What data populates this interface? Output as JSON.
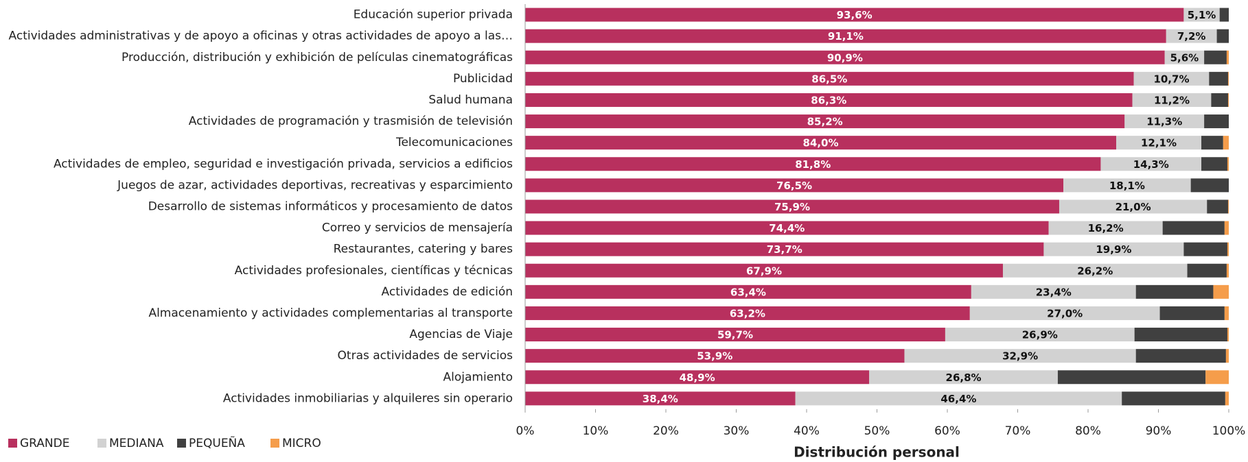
{
  "chart_data": {
    "type": "stacked-bar-horizontal",
    "x_label": "Distribución personal",
    "categories": [
      "Educación superior privada",
      "Actividades administrativas y de apoyo a oficinas y otras actividades de apoyo a las…",
      "Producción, distribución y exhibición de películas cinematográficas",
      "Publicidad",
      "Salud humana",
      "Actividades de programación y trasmisión de televisión",
      "Telecomunicaciones",
      "Actividades de empleo, seguridad e investigación privada, servicios a edificios",
      "Juegos de azar, actividades deportivas, recreativas y esparcimiento",
      "Desarrollo de sistemas informáticos y procesamiento de datos",
      "Correo y servicios de mensajería",
      "Restaurantes, catering y bares",
      "Actividades profesionales, científicas y técnicas",
      "Actividades de edición",
      "Almacenamiento y actividades complementarias al transporte",
      "Agencias de Viaje",
      "Otras actividades de servicios",
      "Alojamiento",
      "Actividades inmobiliarias y alquileres sin operario"
    ],
    "series": [
      {
        "name": "GRANDE",
        "color": "#b8305e",
        "label_color": "#ffffff",
        "values": [
          93.6,
          91.1,
          90.9,
          86.5,
          86.3,
          85.2,
          84.0,
          81.8,
          76.5,
          75.9,
          74.4,
          73.7,
          67.9,
          63.4,
          63.2,
          59.7,
          53.9,
          48.9,
          38.4
        ],
        "value_labels": [
          "93,6%",
          "91,1%",
          "90,9%",
          "86,5%",
          "86,3%",
          "85,2%",
          "84,0%",
          "81,8%",
          "76,5%",
          "75,9%",
          "74,4%",
          "73,7%",
          "67,9%",
          "63,4%",
          "63,2%",
          "59,7%",
          "53,9%",
          "48,9%",
          "38,4%"
        ]
      },
      {
        "name": "MEDIANA",
        "color": "#d2d2d2",
        "label_color": "#111111",
        "values": [
          5.1,
          7.2,
          5.6,
          10.7,
          11.2,
          11.3,
          12.1,
          14.3,
          18.1,
          21.0,
          16.2,
          19.9,
          26.2,
          23.4,
          27.0,
          26.9,
          32.9,
          26.8,
          46.4
        ],
        "value_labels": [
          "5,1%",
          "7,2%",
          "5,6%",
          "10,7%",
          "11,2%",
          "11,3%",
          "12,1%",
          "14,3%",
          "18,1%",
          "21,0%",
          "16,2%",
          "19,9%",
          "26,2%",
          "23,4%",
          "27,0%",
          "26,9%",
          "32,9%",
          "26,8%",
          "46,4%"
        ]
      },
      {
        "name": "PEQUEÑA",
        "color": "#404040",
        "values": [
          1.3,
          1.7,
          3.2,
          2.7,
          2.4,
          3.5,
          3.1,
          3.7,
          5.4,
          3.0,
          8.8,
          6.2,
          5.6,
          11.0,
          9.2,
          13.2,
          12.8,
          21.0,
          14.7
        ]
      },
      {
        "name": "MICRO",
        "color": "#f59d4b",
        "values": [
          0,
          0,
          0.3,
          0.1,
          0.1,
          0,
          0.8,
          0.2,
          0,
          0.1,
          0.6,
          0.2,
          0.3,
          2.2,
          0.6,
          0.2,
          0.4,
          3.3,
          0.5
        ]
      }
    ],
    "xlim": [
      0,
      100
    ],
    "xticks": [
      {
        "value": 0,
        "label": "0%"
      },
      {
        "value": 10,
        "label": "10%"
      },
      {
        "value": 20,
        "label": "20%"
      },
      {
        "value": 30,
        "label": "30%"
      },
      {
        "value": 40,
        "label": "40%"
      },
      {
        "value": 50,
        "label": "50%"
      },
      {
        "value": 60,
        "label": "60%"
      },
      {
        "value": 70,
        "label": "70%"
      },
      {
        "value": 80,
        "label": "80%"
      },
      {
        "value": 90,
        "label": "90%"
      },
      {
        "value": 100,
        "label": "100%"
      }
    ],
    "legend": "bottom-left"
  }
}
